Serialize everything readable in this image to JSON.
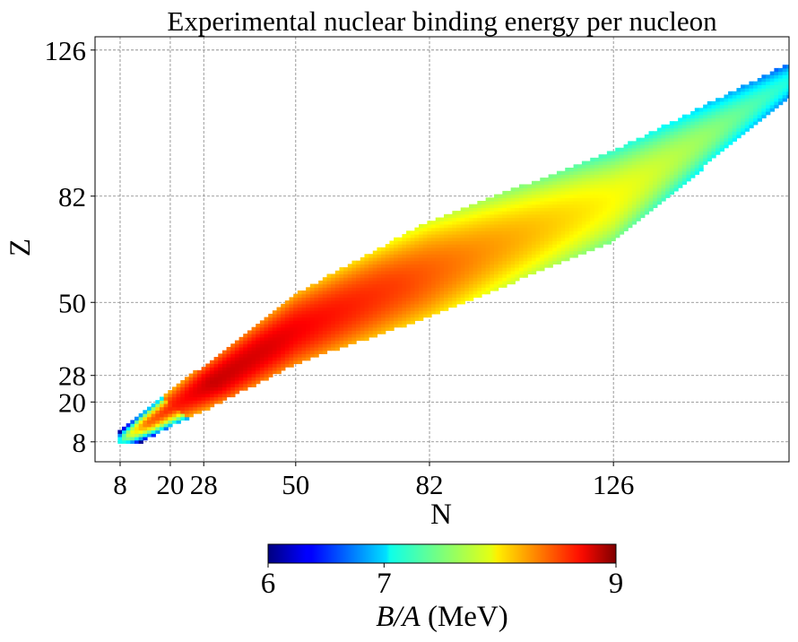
{
  "chart_data": {
    "type": "heatmap",
    "title": "Experimental nuclear binding energy per nucleon",
    "xlabel": "N",
    "ylabel": "Z",
    "xlim": [
      2,
      168
    ],
    "ylim": [
      2,
      130
    ],
    "xticks": [
      8,
      20,
      28,
      50,
      82,
      126
    ],
    "yticks": [
      8,
      20,
      28,
      50,
      82,
      126
    ],
    "grid": true,
    "colormap": "jet",
    "colorbar": {
      "label_italic_part": "B/A",
      "label_rest": " (MeV)",
      "range": [
        6,
        9
      ],
      "ticks": [
        6,
        7,
        9
      ],
      "orientation": "horizontal",
      "placement": "bottom"
    },
    "valley_centerline": [
      {
        "N": 8,
        "Z": 8
      },
      {
        "N": 20,
        "Z": 18
      },
      {
        "N": 28,
        "Z": 24
      },
      {
        "N": 50,
        "Z": 42
      },
      {
        "N": 82,
        "Z": 60
      },
      {
        "N": 126,
        "Z": 82
      },
      {
        "N": 155,
        "Z": 106
      },
      {
        "N": 172,
        "Z": 120
      }
    ],
    "valley_halfwidth_Z": [
      {
        "N": 8,
        "hw": 3
      },
      {
        "N": 20,
        "hw": 5
      },
      {
        "N": 50,
        "hw": 10
      },
      {
        "N": 82,
        "hw": 14
      },
      {
        "N": 126,
        "hw": 13
      },
      {
        "N": 172,
        "hw": 4
      }
    ],
    "binding_energy_profile": [
      {
        "A": 14,
        "BA": 6.9
      },
      {
        "A": 20,
        "BA": 7.7
      },
      {
        "A": 28,
        "BA": 8.3
      },
      {
        "A": 40,
        "BA": 8.55
      },
      {
        "A": 56,
        "BA": 8.78
      },
      {
        "A": 80,
        "BA": 8.72
      },
      {
        "A": 100,
        "BA": 8.6
      },
      {
        "A": 130,
        "BA": 8.44
      },
      {
        "A": 160,
        "BA": 8.2
      },
      {
        "A": 208,
        "BA": 7.87
      },
      {
        "A": 250,
        "BA": 7.55
      },
      {
        "A": 295,
        "BA": 7.1
      }
    ]
  }
}
